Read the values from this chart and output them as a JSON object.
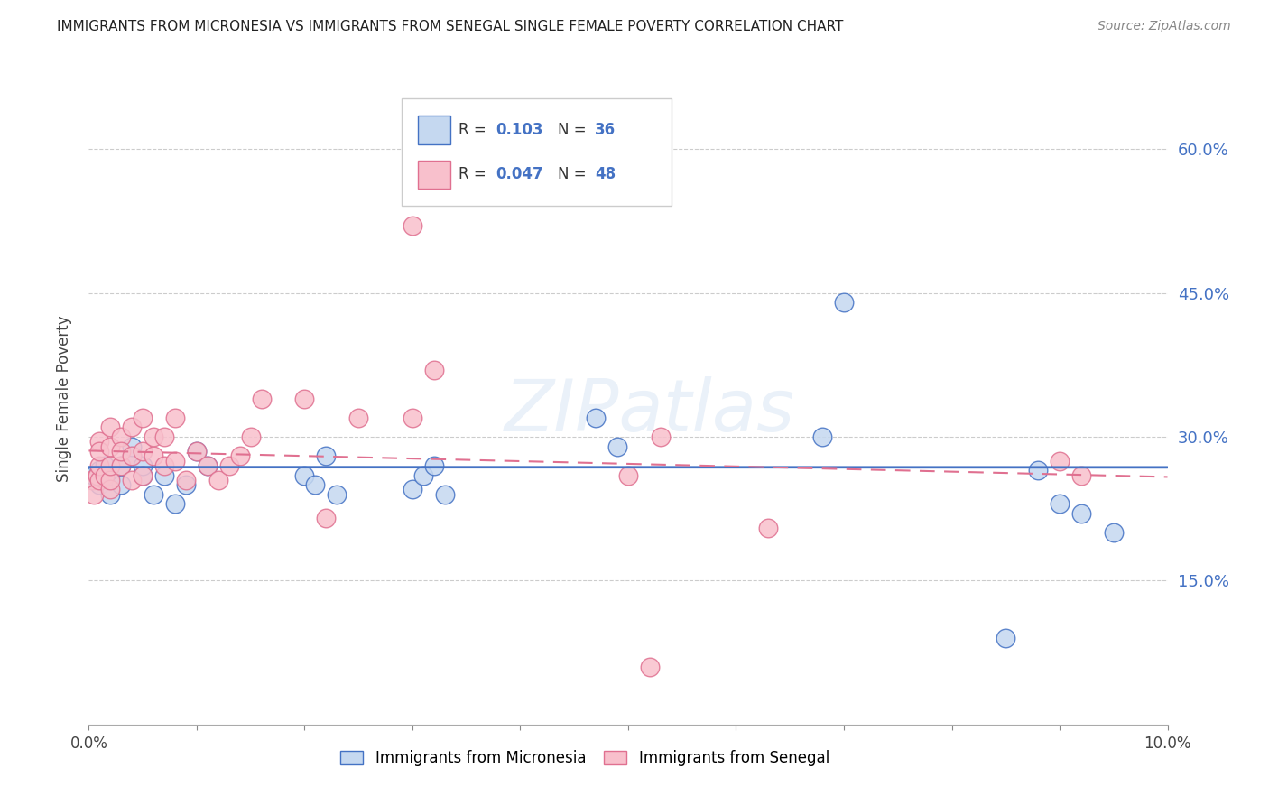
{
  "title": "IMMIGRANTS FROM MICRONESIA VS IMMIGRANTS FROM SENEGAL SINGLE FEMALE POVERTY CORRELATION CHART",
  "source": "Source: ZipAtlas.com",
  "ylabel": "Single Female Poverty",
  "ytick_labels": [
    "15.0%",
    "30.0%",
    "45.0%",
    "60.0%"
  ],
  "ytick_values": [
    0.15,
    0.3,
    0.45,
    0.6
  ],
  "xlim": [
    0.0,
    0.1
  ],
  "ylim": [
    0.0,
    0.68
  ],
  "color_micronesia": "#c5d8f0",
  "color_senegal": "#f8c0cc",
  "color_line_micronesia": "#4472c4",
  "color_line_senegal": "#e07090",
  "micronesia_x": [
    0.0005,
    0.001,
    0.001,
    0.0015,
    0.002,
    0.002,
    0.003,
    0.003,
    0.004,
    0.004,
    0.005,
    0.005,
    0.006,
    0.007,
    0.008,
    0.009,
    0.01,
    0.011,
    0.02,
    0.021,
    0.022,
    0.023,
    0.03,
    0.031,
    0.032,
    0.033,
    0.047,
    0.049,
    0.053,
    0.068,
    0.07,
    0.085,
    0.088,
    0.09,
    0.092,
    0.095
  ],
  "micronesia_y": [
    0.26,
    0.25,
    0.265,
    0.27,
    0.26,
    0.24,
    0.27,
    0.25,
    0.28,
    0.29,
    0.26,
    0.27,
    0.24,
    0.26,
    0.23,
    0.25,
    0.285,
    0.27,
    0.26,
    0.25,
    0.28,
    0.24,
    0.245,
    0.26,
    0.27,
    0.24,
    0.32,
    0.29,
    0.56,
    0.3,
    0.44,
    0.09,
    0.265,
    0.23,
    0.22,
    0.2
  ],
  "senegal_x": [
    0.0003,
    0.0005,
    0.0008,
    0.001,
    0.001,
    0.001,
    0.001,
    0.0015,
    0.002,
    0.002,
    0.002,
    0.002,
    0.002,
    0.003,
    0.003,
    0.003,
    0.004,
    0.004,
    0.004,
    0.005,
    0.005,
    0.005,
    0.006,
    0.006,
    0.007,
    0.007,
    0.008,
    0.008,
    0.009,
    0.01,
    0.011,
    0.012,
    0.013,
    0.014,
    0.015,
    0.016,
    0.02,
    0.022,
    0.025,
    0.03,
    0.032,
    0.03,
    0.053,
    0.063,
    0.09,
    0.092,
    0.05,
    0.052
  ],
  "senegal_y": [
    0.255,
    0.24,
    0.26,
    0.255,
    0.27,
    0.295,
    0.285,
    0.26,
    0.245,
    0.255,
    0.27,
    0.29,
    0.31,
    0.27,
    0.3,
    0.285,
    0.255,
    0.28,
    0.31,
    0.26,
    0.285,
    0.32,
    0.28,
    0.3,
    0.27,
    0.3,
    0.275,
    0.32,
    0.255,
    0.285,
    0.27,
    0.255,
    0.27,
    0.28,
    0.3,
    0.34,
    0.34,
    0.215,
    0.32,
    0.32,
    0.37,
    0.52,
    0.3,
    0.205,
    0.275,
    0.26,
    0.26,
    0.06
  ],
  "watermark": "ZIPatlas",
  "legend_items": [
    {
      "label": "Immigrants from Micronesia",
      "R": "0.103",
      "N": "36"
    },
    {
      "label": "Immigrants from Senegal",
      "R": "0.047",
      "N": "48"
    }
  ]
}
